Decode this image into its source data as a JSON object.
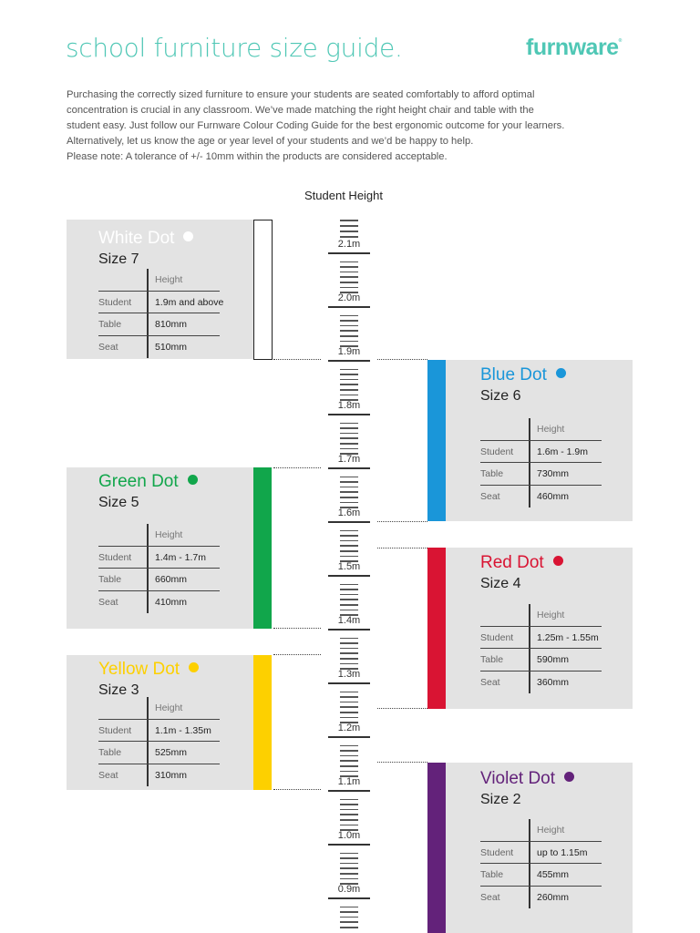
{
  "header": {
    "title": "school furniture size guide.",
    "logo": "furnware",
    "logo_mark": "®",
    "brand_color": "#4fc7b5"
  },
  "intro": {
    "lines": [
      "Purchasing the correctly sized furniture to ensure your students are seated comfortably to afford optimal",
      "concentration is crucial in any classroom. We’ve made matching the right height chair and table with the",
      "student easy. Just follow our Furnware Colour Coding Guide for the best ergonomic outcome for your learners.",
      "Alternatively, let us know the age or year level of your students and we’d be happy to help.",
      "Please note: A tolerance of +/- 10mm within the products are considered acceptable."
    ]
  },
  "ruler": {
    "title": "Student Height",
    "labels": [
      "2.1m",
      "2.0m",
      "1.9m",
      "1.8m",
      "1.7m",
      "1.6m",
      "1.5m",
      "1.4m",
      "1.3m",
      "1.2m",
      "1.1m",
      "1.0m",
      "0.9m"
    ]
  },
  "table_header": "Height",
  "row_labels": {
    "student": "Student",
    "table": "Table",
    "seat": "Seat"
  },
  "sizes": [
    {
      "name": "White Dot",
      "size": "Size 7",
      "color": "#ffffff",
      "student": "1.9m and above",
      "table": "810mm",
      "seat": "510mm"
    },
    {
      "name": "Blue Dot",
      "size": "Size 6",
      "color": "#1a96d9",
      "student": "1.6m - 1.9m",
      "table": "730mm",
      "seat": "460mm"
    },
    {
      "name": "Green Dot",
      "size": "Size 5",
      "color": "#11a64b",
      "student": "1.4m - 1.7m",
      "table": "660mm",
      "seat": "410mm"
    },
    {
      "name": "Red Dot",
      "size": "Size 4",
      "color": "#d91433",
      "student": "1.25m - 1.55m",
      "table": "590mm",
      "seat": "360mm"
    },
    {
      "name": "Yellow Dot",
      "size": "Size 3",
      "color": "#fdd000",
      "student": "1.1m - 1.35m",
      "table": "525mm",
      "seat": "310mm"
    },
    {
      "name": "Violet Dot",
      "size": "Size 2",
      "color": "#63227a",
      "student": "up to 1.15m",
      "table": "455mm",
      "seat": "260mm"
    }
  ]
}
